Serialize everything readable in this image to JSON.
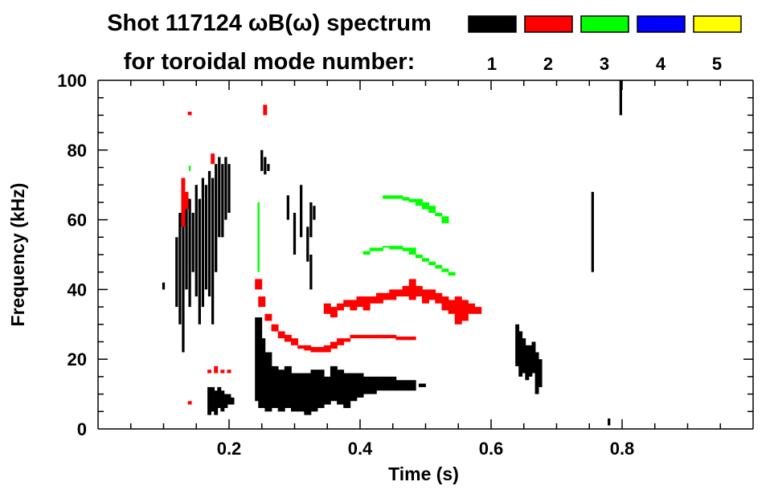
{
  "chart_data": {
    "type": "heatmap",
    "title": "Shot 117124 ωB(ω) spectrum",
    "legend_title": "for toroidal mode number:",
    "legend": [
      {
        "label": "1",
        "color": "#000000"
      },
      {
        "label": "2",
        "color": "#ff0000"
      },
      {
        "label": "3",
        "color": "#00ff00"
      },
      {
        "label": "4",
        "color": "#0000ff"
      },
      {
        "label": "5",
        "color": "#ffff00"
      }
    ],
    "xlabel": "Time (s)",
    "ylabel": "Frequency (kHz)",
    "xlim": [
      0,
      1.0
    ],
    "ylim": [
      0,
      100
    ],
    "xticks": [
      {
        "v": 0.2,
        "label": "0.2"
      },
      {
        "v": 0.4,
        "label": "0.4"
      },
      {
        "v": 0.6,
        "label": "0.6"
      },
      {
        "v": 0.8,
        "label": "0.8"
      }
    ],
    "yticks": [
      {
        "v": 0,
        "label": "0"
      },
      {
        "v": 20,
        "label": "20"
      },
      {
        "v": 40,
        "label": "40"
      },
      {
        "v": 60,
        "label": "60"
      },
      {
        "v": 80,
        "label": "80"
      },
      {
        "v": 100,
        "label": "100"
      }
    ],
    "x_minor_step": 0.05,
    "y_minor_step": 5,
    "features_note_units": "each entry [time_s, freq_low_kHz, freq_high_kHz]",
    "features": [
      {
        "mode": 1,
        "dt": 0.004,
        "points": [
          [
            0.1,
            40,
            42
          ],
          [
            0.12,
            35,
            55
          ],
          [
            0.125,
            30,
            62
          ],
          [
            0.13,
            22,
            60
          ],
          [
            0.135,
            40,
            64
          ],
          [
            0.14,
            35,
            66
          ],
          [
            0.145,
            45,
            62
          ],
          [
            0.15,
            38,
            70
          ],
          [
            0.155,
            30,
            66
          ],
          [
            0.16,
            35,
            72
          ],
          [
            0.165,
            40,
            70
          ],
          [
            0.17,
            38,
            74
          ],
          [
            0.175,
            30,
            72
          ],
          [
            0.18,
            45,
            76
          ],
          [
            0.185,
            55,
            78
          ],
          [
            0.19,
            55,
            76
          ],
          [
            0.195,
            60,
            78
          ],
          [
            0.2,
            62,
            76
          ]
        ]
      },
      {
        "mode": 1,
        "dt": 0.006,
        "points": [
          [
            0.17,
            4,
            12
          ],
          [
            0.175,
            5,
            12
          ],
          [
            0.18,
            4,
            11
          ],
          [
            0.185,
            6,
            12
          ],
          [
            0.19,
            5,
            11
          ],
          [
            0.195,
            6,
            10
          ],
          [
            0.2,
            7,
            10
          ],
          [
            0.205,
            7,
            9
          ]
        ]
      },
      {
        "mode": 1,
        "dt": 0.011,
        "points": [
          [
            0.245,
            8,
            32
          ],
          [
            0.25,
            6,
            26
          ],
          [
            0.26,
            5,
            22
          ],
          [
            0.27,
            6,
            18
          ],
          [
            0.28,
            5,
            17
          ],
          [
            0.29,
            6,
            18
          ],
          [
            0.3,
            5,
            16
          ],
          [
            0.31,
            5,
            16
          ],
          [
            0.32,
            4,
            16
          ],
          [
            0.33,
            5,
            17
          ],
          [
            0.34,
            6,
            17
          ],
          [
            0.35,
            7,
            15
          ],
          [
            0.36,
            8,
            18
          ],
          [
            0.37,
            7,
            17
          ],
          [
            0.38,
            6,
            16
          ],
          [
            0.39,
            8,
            16
          ],
          [
            0.4,
            9,
            16
          ],
          [
            0.41,
            10,
            15
          ],
          [
            0.42,
            10,
            15
          ],
          [
            0.43,
            11,
            15
          ],
          [
            0.44,
            11,
            15
          ],
          [
            0.45,
            11,
            15
          ],
          [
            0.46,
            11,
            14
          ],
          [
            0.47,
            11,
            14
          ],
          [
            0.48,
            11,
            14
          ],
          [
            0.495,
            12,
            13
          ]
        ]
      },
      {
        "mode": 1,
        "dt": 0.004,
        "points": [
          [
            0.25,
            74,
            80
          ],
          [
            0.255,
            73,
            78
          ],
          [
            0.26,
            74,
            76
          ],
          [
            0.29,
            60,
            67
          ],
          [
            0.3,
            50,
            62
          ],
          [
            0.31,
            55,
            70
          ],
          [
            0.32,
            48,
            58
          ],
          [
            0.325,
            55,
            65
          ],
          [
            0.33,
            60,
            64
          ],
          [
            0.325,
            40,
            50
          ]
        ]
      },
      {
        "mode": 1,
        "dt": 0.006,
        "points": [
          [
            0.64,
            18,
            30
          ],
          [
            0.645,
            15,
            28
          ],
          [
            0.65,
            16,
            26
          ],
          [
            0.655,
            14,
            24
          ],
          [
            0.66,
            15,
            24
          ],
          [
            0.665,
            16,
            25
          ],
          [
            0.67,
            10,
            22
          ],
          [
            0.675,
            12,
            20
          ]
        ]
      },
      {
        "mode": 1,
        "dt": 0.004,
        "points": [
          [
            0.755,
            45,
            68
          ],
          [
            0.798,
            90,
            100
          ],
          [
            0.78,
            1,
            3
          ]
        ]
      },
      {
        "mode": 2,
        "dt": 0.011,
        "points": [
          [
            0.245,
            40,
            43
          ],
          [
            0.25,
            35,
            38
          ],
          [
            0.26,
            31,
            33
          ],
          [
            0.27,
            28,
            30
          ],
          [
            0.28,
            26,
            28
          ],
          [
            0.29,
            25,
            27
          ],
          [
            0.3,
            24,
            26
          ],
          [
            0.31,
            23,
            24
          ],
          [
            0.32,
            22.5,
            24
          ],
          [
            0.33,
            22,
            23.5
          ],
          [
            0.34,
            22,
            23.5
          ],
          [
            0.35,
            22,
            24
          ],
          [
            0.36,
            23,
            25
          ],
          [
            0.37,
            24,
            26
          ],
          [
            0.38,
            25,
            26
          ]
        ]
      },
      {
        "mode": 2,
        "dt": 0.011,
        "points": [
          [
            0.35,
            33,
            36
          ],
          [
            0.36,
            32,
            35
          ],
          [
            0.37,
            34,
            36
          ],
          [
            0.38,
            35,
            37
          ],
          [
            0.39,
            34,
            37
          ],
          [
            0.4,
            35,
            38
          ],
          [
            0.41,
            34,
            38
          ],
          [
            0.42,
            36,
            38
          ],
          [
            0.43,
            36,
            39
          ],
          [
            0.44,
            37,
            39
          ],
          [
            0.45,
            37,
            40
          ],
          [
            0.46,
            38,
            40
          ],
          [
            0.47,
            38,
            41
          ],
          [
            0.48,
            37,
            43
          ],
          [
            0.49,
            38,
            41
          ],
          [
            0.5,
            36,
            40
          ],
          [
            0.51,
            37,
            40
          ],
          [
            0.52,
            36,
            39
          ],
          [
            0.53,
            34,
            38
          ],
          [
            0.54,
            33,
            37
          ],
          [
            0.55,
            30,
            38
          ],
          [
            0.56,
            31,
            37
          ],
          [
            0.57,
            33,
            36
          ],
          [
            0.58,
            33,
            35
          ]
        ]
      },
      {
        "mode": 2,
        "dt": 0.011,
        "points": [
          [
            0.39,
            26,
            27
          ],
          [
            0.4,
            26,
            27
          ],
          [
            0.41,
            26,
            27
          ],
          [
            0.42,
            26,
            27
          ],
          [
            0.43,
            26,
            27
          ],
          [
            0.44,
            26,
            27
          ],
          [
            0.45,
            26,
            27
          ],
          [
            0.46,
            25.5,
            26.5
          ],
          [
            0.47,
            25.5,
            26.5
          ],
          [
            0.48,
            25.5,
            26.5
          ]
        ]
      },
      {
        "mode": 2,
        "dt": 0.006,
        "points": [
          [
            0.17,
            16,
            17
          ],
          [
            0.18,
            16,
            18
          ],
          [
            0.19,
            16,
            17
          ],
          [
            0.2,
            16,
            17
          ],
          [
            0.13,
            58,
            72
          ],
          [
            0.135,
            63,
            68
          ],
          [
            0.175,
            76,
            79
          ],
          [
            0.255,
            90,
            93
          ],
          [
            0.14,
            90,
            91
          ],
          [
            0.14,
            7,
            8
          ]
        ]
      },
      {
        "mode": 3,
        "dt": 0.011,
        "points": [
          [
            0.44,
            66,
            67
          ],
          [
            0.45,
            66,
            67
          ],
          [
            0.46,
            66,
            67
          ],
          [
            0.47,
            65.5,
            66.5
          ],
          [
            0.48,
            65,
            66
          ],
          [
            0.49,
            64,
            66
          ],
          [
            0.5,
            63,
            65
          ],
          [
            0.51,
            62,
            64
          ],
          [
            0.52,
            61,
            62
          ],
          [
            0.53,
            59,
            61
          ]
        ]
      },
      {
        "mode": 3,
        "dt": 0.011,
        "points": [
          [
            0.41,
            50,
            51
          ],
          [
            0.42,
            51,
            52
          ],
          [
            0.43,
            51,
            52
          ],
          [
            0.44,
            52,
            52.5
          ],
          [
            0.45,
            51.5,
            52.5
          ],
          [
            0.46,
            51.5,
            52.5
          ],
          [
            0.47,
            51,
            52
          ],
          [
            0.48,
            50,
            52
          ],
          [
            0.49,
            49,
            50
          ],
          [
            0.5,
            48,
            49
          ],
          [
            0.51,
            47,
            48
          ],
          [
            0.52,
            46,
            47
          ],
          [
            0.53,
            45,
            46
          ],
          [
            0.54,
            44,
            45
          ]
        ]
      },
      {
        "mode": 3,
        "dt": 0.003,
        "points": [
          [
            0.14,
            74,
            75.5
          ],
          [
            0.245,
            45,
            65
          ]
        ]
      }
    ]
  }
}
